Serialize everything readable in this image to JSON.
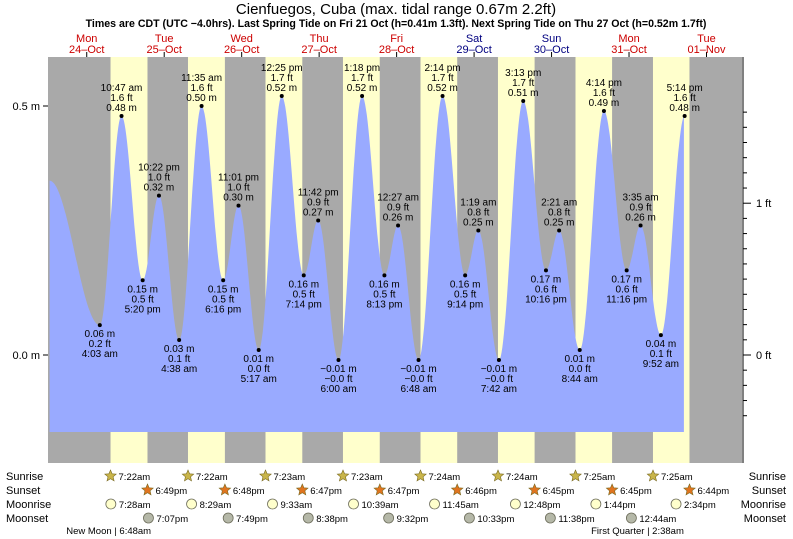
{
  "chart_data": {
    "type": "area",
    "title": "Cienfuegos, Cuba (max. tidal range 0.67m 2.2ft)",
    "subtitle": "Times are CDT (UTC −4.0hrs). Last Spring Tide on Fri 21 Oct (h=0.41m 1.3ft). Next Spring Tide on Thu 27 Oct (h=0.52m 1.7ft)",
    "ylabel_left": "m",
    "ylabel_right": "ft",
    "ylim": [
      -0.15,
      0.57
    ],
    "y_ticks_m": [
      {
        "value": 0.0,
        "label": "0.0 m"
      },
      {
        "value": 0.5,
        "label": "0.5 m"
      }
    ],
    "y_ticks_ft": [
      {
        "value": 0,
        "label": "0 ft"
      },
      {
        "value": 1,
        "label": "1 ft"
      }
    ],
    "days": [
      {
        "dow": "Mon",
        "date": "24–Oct",
        "weekend": false
      },
      {
        "dow": "Tue",
        "date": "25–Oct",
        "weekend": false
      },
      {
        "dow": "Wed",
        "date": "26–Oct",
        "weekend": false
      },
      {
        "dow": "Thu",
        "date": "27–Oct",
        "weekend": false
      },
      {
        "dow": "Fri",
        "date": "28–Oct",
        "weekend": false
      },
      {
        "dow": "Sat",
        "date": "29–Oct",
        "weekend": true
      },
      {
        "dow": "Sun",
        "date": "30–Oct",
        "weekend": true
      },
      {
        "dow": "Mon",
        "date": "31–Oct",
        "weekend": false
      },
      {
        "dow": "Tue",
        "date": "01–Nov",
        "weekend": false
      }
    ],
    "daylight": [
      {
        "sunrise_hour": 31.37,
        "sunset_hour": 42.82
      },
      {
        "sunrise_hour": 55.37,
        "sunset_hour": 66.8
      },
      {
        "sunrise_hour": 79.38,
        "sunset_hour": 90.78
      },
      {
        "sunrise_hour": 103.38,
        "sunset_hour": 114.78
      },
      {
        "sunrise_hour": 127.4,
        "sunset_hour": 138.77
      },
      {
        "sunrise_hour": 151.4,
        "sunset_hour": 162.75
      },
      {
        "sunrise_hour": 175.42,
        "sunset_hour": 186.75
      },
      {
        "sunrise_hour": 199.42,
        "sunset_hour": 210.73
      }
    ],
    "series_start_hour": 12.0,
    "series_end_hour": 210.5,
    "tides": [
      {
        "hour": 12.5,
        "m": 0.35,
        "time": "",
        "ft": "",
        "type": "start",
        "label": false
      },
      {
        "hour": 28.05,
        "m": 0.06,
        "time": "4:03 am",
        "ft": "0.2 ft",
        "type": "low",
        "label": true
      },
      {
        "hour": 34.78,
        "m": 0.48,
        "time": "10:47 am",
        "ft": "1.6 ft",
        "type": "high",
        "label": true
      },
      {
        "hour": 41.33,
        "m": 0.15,
        "time": "5:20 pm",
        "ft": "0.5 ft",
        "type": "low",
        "label": true
      },
      {
        "hour": 46.37,
        "m": 0.32,
        "time": "10:22 pm",
        "ft": "1.0 ft",
        "type": "high",
        "label": true
      },
      {
        "hour": 52.63,
        "m": 0.03,
        "time": "4:38 am",
        "ft": "0.1 ft",
        "type": "low",
        "label": true
      },
      {
        "hour": 59.58,
        "m": 0.5,
        "time": "11:35 am",
        "ft": "1.6 ft",
        "type": "high",
        "label": true
      },
      {
        "hour": 66.27,
        "m": 0.15,
        "time": "6:16 pm",
        "ft": "0.5 ft",
        "type": "low",
        "label": true
      },
      {
        "hour": 71.02,
        "m": 0.3,
        "time": "11:01 pm",
        "ft": "1.0 ft",
        "type": "high",
        "label": true
      },
      {
        "hour": 77.28,
        "m": 0.01,
        "time": "5:17 am",
        "ft": "0.0 ft",
        "type": "low",
        "label": true
      },
      {
        "hour": 84.42,
        "m": 0.52,
        "time": "12:25 pm",
        "ft": "1.7 ft",
        "type": "high",
        "label": true
      },
      {
        "hour": 91.23,
        "m": 0.16,
        "time": "7:14 pm",
        "ft": "0.5 ft",
        "type": "low",
        "label": true
      },
      {
        "hour": 95.7,
        "m": 0.27,
        "time": "11:42 pm",
        "ft": "0.9 ft",
        "type": "high",
        "label": true
      },
      {
        "hour": 102.0,
        "m": -0.01,
        "time": "6:00 am",
        "ft": "−0.0 ft",
        "mlabel": "−0.01 m",
        "type": "low",
        "label": true
      },
      {
        "hour": 109.3,
        "m": 0.52,
        "time": "1:18 pm",
        "ft": "1.7 ft",
        "type": "high",
        "label": true
      },
      {
        "hour": 116.22,
        "m": 0.16,
        "time": "8:13 pm",
        "ft": "0.5 ft",
        "type": "low",
        "label": true
      },
      {
        "hour": 120.45,
        "m": 0.26,
        "time": "12:27 am",
        "ft": "0.9 ft",
        "type": "high",
        "label": true
      },
      {
        "hour": 126.8,
        "m": -0.01,
        "time": "6:48 am",
        "ft": "−0.0 ft",
        "mlabel": "−0.01 m",
        "type": "low",
        "label": true
      },
      {
        "hour": 134.23,
        "m": 0.52,
        "time": "2:14 pm",
        "ft": "1.7 ft",
        "type": "high",
        "label": true
      },
      {
        "hour": 141.23,
        "m": 0.16,
        "time": "9:14 pm",
        "ft": "0.5 ft",
        "type": "low",
        "label": true
      },
      {
        "hour": 145.32,
        "m": 0.25,
        "time": "1:19 am",
        "ft": "0.8 ft",
        "type": "high",
        "label": true
      },
      {
        "hour": 151.7,
        "m": -0.01,
        "time": "7:42 am",
        "ft": "−0.0 ft",
        "mlabel": "−0.01 m",
        "type": "low",
        "label": true
      },
      {
        "hour": 159.22,
        "m": 0.51,
        "time": "3:13 pm",
        "ft": "1.7 ft",
        "type": "high",
        "label": true
      },
      {
        "hour": 166.27,
        "m": 0.17,
        "time": "10:16 pm",
        "ft": "0.6 ft",
        "type": "low",
        "label": true
      },
      {
        "hour": 170.35,
        "m": 0.25,
        "time": "2:21 am",
        "ft": "0.8 ft",
        "type": "high",
        "label": true
      },
      {
        "hour": 176.73,
        "m": 0.01,
        "time": "8:44 am",
        "ft": "0.0 ft",
        "type": "low",
        "label": true
      },
      {
        "hour": 184.23,
        "m": 0.49,
        "time": "4:14 pm",
        "ft": "1.6 ft",
        "type": "high",
        "label": true
      },
      {
        "hour": 191.27,
        "m": 0.17,
        "time": "11:16 pm",
        "ft": "0.6 ft",
        "type": "low",
        "label": true
      },
      {
        "hour": 195.58,
        "m": 0.26,
        "time": "3:35 am",
        "ft": "0.9 ft",
        "type": "high",
        "label": true
      },
      {
        "hour": 201.87,
        "m": 0.04,
        "time": "9:52 am",
        "ft": "0.1 ft",
        "type": "low",
        "label": true
      },
      {
        "hour": 209.23,
        "m": 0.48,
        "time": "5:14 pm",
        "ft": "1.6 ft",
        "type": "high",
        "label": true
      }
    ],
    "colors": {
      "day": "#ffffcc",
      "night": "#a9a9a9",
      "water": "#99aaff",
      "sun_star": "#c9b54a",
      "sunset_star": "#e0741f",
      "moonrise": "#ffffcc",
      "moonset": "#b5b8a8"
    }
  },
  "astro": {
    "row_labels": {
      "sunrise": "Sunrise",
      "sunset": "Sunset",
      "moonrise": "Moonrise",
      "moonset": "Moonset"
    },
    "sunrise": [
      {
        "hour": 31.37,
        "label": "7:22am"
      },
      {
        "hour": 55.37,
        "label": "7:22am"
      },
      {
        "hour": 79.38,
        "label": "7:23am"
      },
      {
        "hour": 103.38,
        "label": "7:23am"
      },
      {
        "hour": 127.4,
        "label": "7:24am"
      },
      {
        "hour": 151.4,
        "label": "7:24am"
      },
      {
        "hour": 175.42,
        "label": "7:25am"
      },
      {
        "hour": 199.42,
        "label": "7:25am"
      }
    ],
    "sunset": [
      {
        "hour": 42.82,
        "label": "6:49pm"
      },
      {
        "hour": 66.8,
        "label": "6:48pm"
      },
      {
        "hour": 90.78,
        "label": "6:47pm"
      },
      {
        "hour": 114.78,
        "label": "6:47pm"
      },
      {
        "hour": 138.77,
        "label": "6:46pm"
      },
      {
        "hour": 162.75,
        "label": "6:45pm"
      },
      {
        "hour": 186.75,
        "label": "6:45pm"
      },
      {
        "hour": 210.73,
        "label": "6:44pm"
      }
    ],
    "moonrise": [
      {
        "hour": 31.47,
        "label": "7:28am"
      },
      {
        "hour": 56.48,
        "label": "8:29am"
      },
      {
        "hour": 81.55,
        "label": "9:33am"
      },
      {
        "hour": 106.65,
        "label": "10:39am"
      },
      {
        "hour": 131.75,
        "label": "11:45am"
      },
      {
        "hour": 156.8,
        "label": "12:48pm"
      },
      {
        "hour": 181.73,
        "label": "1:44pm"
      },
      {
        "hour": 206.57,
        "label": "2:34pm"
      }
    ],
    "moonset": [
      {
        "hour": 43.12,
        "label": "7:07pm"
      },
      {
        "hour": 67.82,
        "label": "7:49pm"
      },
      {
        "hour": 92.63,
        "label": "8:38pm"
      },
      {
        "hour": 117.53,
        "label": "9:32pm"
      },
      {
        "hour": 142.55,
        "label": "10:33pm"
      },
      {
        "hour": 167.63,
        "label": "11:38pm"
      },
      {
        "hour": 192.73,
        "label": "12:44am"
      }
    ],
    "moon_phases": [
      {
        "hour": 30.8,
        "label": "New Moon | 6:48am",
        "align": "start"
      },
      {
        "hour": 194.63,
        "label": "First Quarter | 2:38am",
        "align": "end"
      }
    ]
  }
}
